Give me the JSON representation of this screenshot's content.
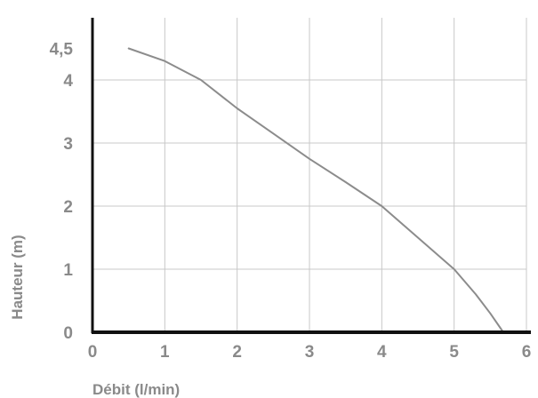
{
  "chart_data": {
    "type": "line",
    "title": "",
    "xlabel": "Débit (l/min)",
    "ylabel": "Hauteur (m)",
    "xlim": [
      0,
      6
    ],
    "ylim": [
      0,
      4.5
    ],
    "grid": true,
    "x_ticks": [
      {
        "value": 0,
        "label": "0"
      },
      {
        "value": 1,
        "label": "1"
      },
      {
        "value": 2,
        "label": "2"
      },
      {
        "value": 3,
        "label": "3"
      },
      {
        "value": 4,
        "label": "4"
      },
      {
        "value": 5,
        "label": "5"
      },
      {
        "value": 6,
        "label": "6"
      }
    ],
    "y_ticks": [
      {
        "value": 0,
        "label": "0"
      },
      {
        "value": 1,
        "label": "1"
      },
      {
        "value": 2,
        "label": "2"
      },
      {
        "value": 3,
        "label": "3"
      },
      {
        "value": 4,
        "label": "4"
      },
      {
        "value": 4.5,
        "label": "4,5"
      }
    ],
    "series": [
      {
        "color": "#8c8c8c",
        "x": [
          0.5,
          1.0,
          1.5,
          2.0,
          2.5,
          3.0,
          3.5,
          4.0,
          4.5,
          5.0,
          5.3,
          5.5,
          5.68
        ],
        "y": [
          4.5,
          4.3,
          4.0,
          3.55,
          3.15,
          2.75,
          2.38,
          2.0,
          1.5,
          1.0,
          0.6,
          0.3,
          0.0
        ]
      }
    ]
  }
}
